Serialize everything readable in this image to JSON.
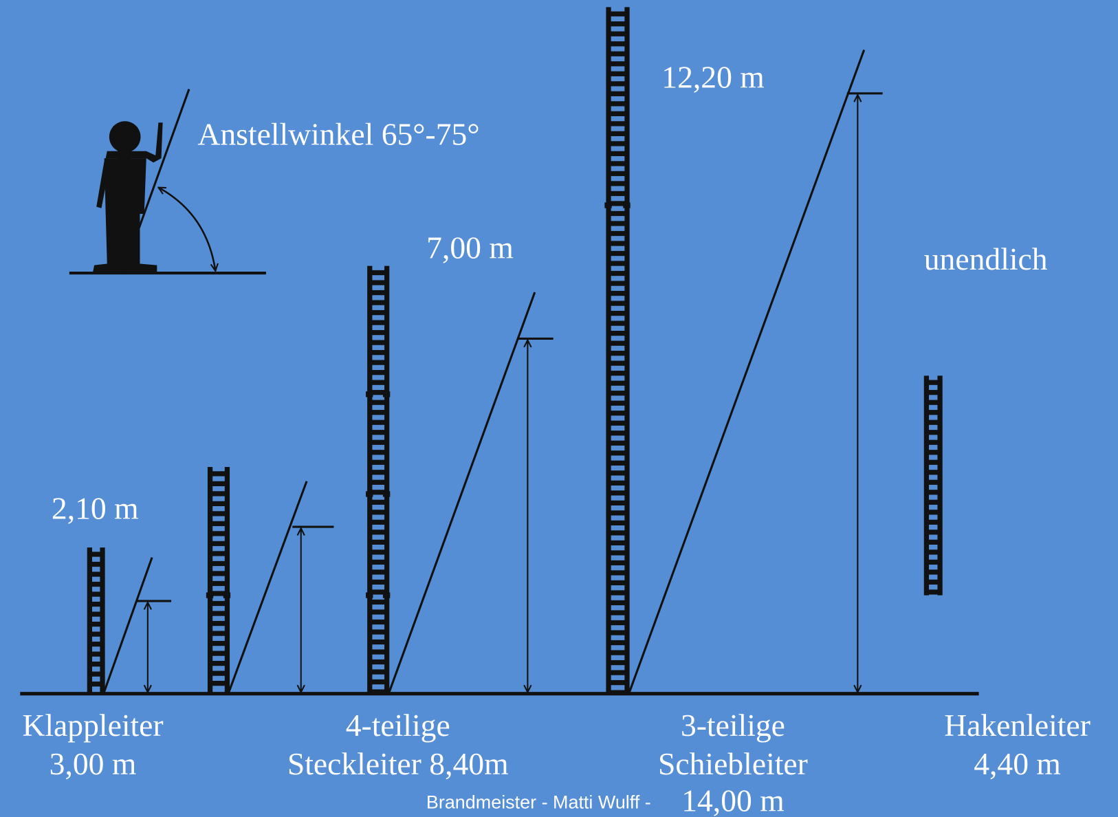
{
  "angle_label": "Anstellwinkel 65°-75°",
  "heights": [
    "2,10 m",
    "7,00 m",
    "12,20 m",
    "unendlich"
  ],
  "ladders": [
    {
      "lines": [
        "Klappleiter",
        "3,00 m"
      ]
    },
    {
      "lines": [
        "4-teilige",
        "Steckleiter 8,40m"
      ]
    },
    {
      "lines": [
        "3-teilige",
        "Schiebleiter",
        "14,00 m"
      ]
    },
    {
      "lines": [
        "Hakenleiter",
        "4,40 m"
      ]
    }
  ],
  "credit": "Brandmeister - Matti Wulff -"
}
